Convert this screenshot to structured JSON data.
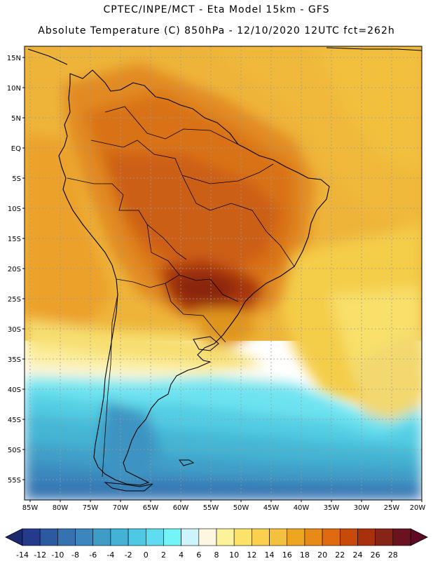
{
  "header": {
    "line1": "CPTEC/INPE/MCT -  Eta Model 15km - GFS",
    "line2": "Absolute Temperature (C) 850hPa - 12/10/2020 12UTC fct=262h"
  },
  "map": {
    "variable": "Absolute Temperature",
    "units": "C",
    "level": "850hPa",
    "lat_labels": [
      "15N",
      "10N",
      "5N",
      "EQ",
      "5S",
      "10S",
      "15S",
      "20S",
      "25S",
      "30S",
      "35S",
      "40S",
      "45S",
      "50S",
      "55S"
    ],
    "lon_labels": [
      "85W",
      "80W",
      "75W",
      "70W",
      "65W",
      "60W",
      "55W",
      "50W",
      "45W",
      "40W",
      "35W",
      "30W",
      "25W",
      "20W"
    ]
  },
  "colorbar": {
    "labels": [
      "-14",
      "-12",
      "-10",
      "-8",
      "-6",
      "-4",
      "-2",
      "0",
      "2",
      "4",
      "6",
      "8",
      "10",
      "12",
      "14",
      "16",
      "18",
      "20",
      "22",
      "24",
      "26",
      "28"
    ],
    "colors": [
      "#243b8c",
      "#2c5aa0",
      "#3672b0",
      "#3b86bd",
      "#3f9cc6",
      "#44b2d4",
      "#4ec8e3",
      "#5fdcef",
      "#73f5f8",
      "#cdf3fb",
      "#fdf7e2",
      "#fcf29a",
      "#fbe36a",
      "#f9d14f",
      "#f3c13d",
      "#eea51f",
      "#e88a16",
      "#df6a10",
      "#c84a0b",
      "#a8310b",
      "#862415",
      "#6b1220"
    ],
    "left_arrow_color": "#1b2a6c",
    "right_arrow_color": "#5e0a22"
  }
}
